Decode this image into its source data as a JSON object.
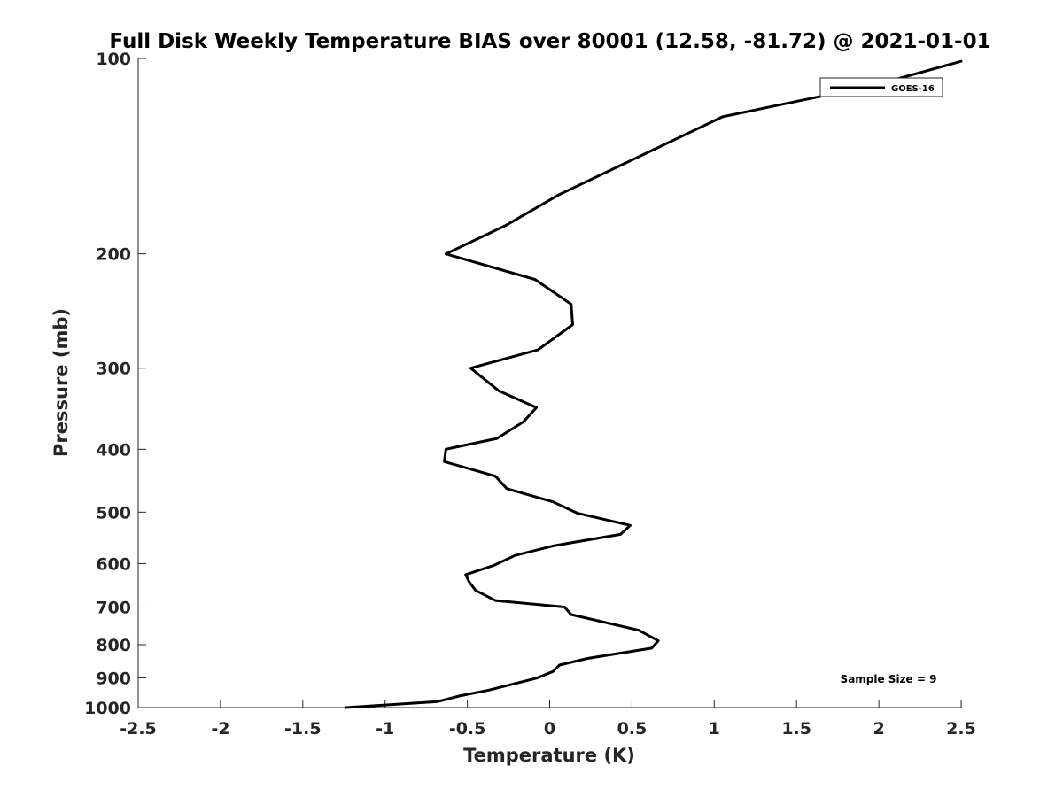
{
  "chart_data": {
    "type": "line",
    "title": "Full Disk Weekly Temperature BIAS over 80001 (12.58, -81.72) @ 2021-01-01",
    "xlabel": "Temperature (K)",
    "ylabel": "Pressure (mb)",
    "xlim": [
      -2.5,
      2.5
    ],
    "ylim": [
      1000,
      100
    ],
    "y_scale": "log",
    "y_reversed": true,
    "x_ticks": [
      "-2.5",
      "-2",
      "-1.5",
      "-1",
      "-0.5",
      "0",
      "0.5",
      "1",
      "1.5",
      "2",
      "2.5"
    ],
    "y_ticks": [
      "100",
      "200",
      "300",
      "400",
      "500",
      "600",
      "700",
      "800",
      "900",
      "1000"
    ],
    "grid": false,
    "legend_position": "top-right",
    "annotation": "Sample Size = 9",
    "series": [
      {
        "name": "GOES-16",
        "color": "#000000",
        "x": [
          2.5,
          1.97,
          1.05,
          0.56,
          0.06,
          -0.27,
          -0.63,
          -0.09,
          0.13,
          0.14,
          -0.07,
          -0.48,
          -0.31,
          -0.08,
          -0.16,
          -0.32,
          -0.63,
          -0.64,
          -0.33,
          -0.26,
          0.02,
          0.17,
          0.49,
          0.43,
          0.03,
          -0.21,
          -0.34,
          -0.51,
          -0.49,
          -0.45,
          -0.33,
          0.09,
          0.13,
          0.54,
          0.66,
          0.62,
          0.23,
          0.06,
          0.02,
          -0.08,
          -0.37,
          -0.55,
          -0.68,
          -1.24
        ],
        "y": [
          101,
          110,
          123,
          141,
          162,
          181,
          200,
          219,
          239,
          257,
          281,
          300,
          325,
          345,
          363,
          385,
          400,
          418,
          440,
          460,
          482,
          502,
          524,
          541,
          563,
          583,
          604,
          624,
          640,
          660,
          684,
          700,
          719,
          760,
          789,
          810,
          840,
          860,
          880,
          901,
          940,
          960,
          979,
          1000
        ]
      }
    ]
  }
}
